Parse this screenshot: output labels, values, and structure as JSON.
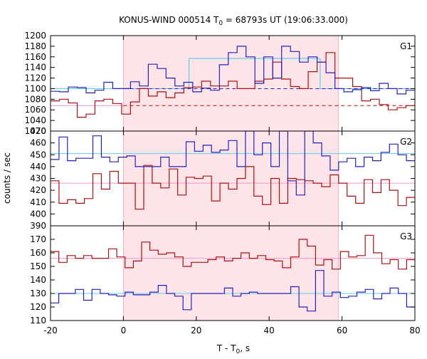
{
  "chart_data": {
    "type": "line",
    "title_main": "KONUS-WIND 000514 T",
    "title_sub": "0",
    "title_rest": " = 68793s UT (19:06:33.000)",
    "xlabel_main": "T - T",
    "xlabel_sub": "0",
    "xlabel_rest": ", s",
    "ylabel": "counts / sec",
    "xlim": [
      -20,
      80
    ],
    "xticks": [
      "-20",
      "0",
      "20",
      "40",
      "60",
      "80"
    ],
    "highlight_interval": [
      0,
      59
    ],
    "colors": {
      "blue": "#2222bb",
      "red": "#aa1111",
      "cyan": "#66ccee",
      "pink": "#ee99cc",
      "band": "#fde4e8"
    },
    "panels": [
      {
        "label": "G1",
        "ylim": [
          1020,
          1200
        ],
        "yticks": [
          "1020",
          "1040",
          "1060",
          "1080",
          "1100",
          "1120",
          "1140",
          "1160",
          "1180",
          "1200"
        ],
        "blue_series": [
          1095,
          1094,
          1103,
          1102,
          1092,
          1097,
          1112,
          1100,
          1100,
          1113,
          1105,
          1146,
          1138,
          1120,
          1105,
          1112,
          1094,
          1101,
          1097,
          1145,
          1168,
          1180,
          1160,
          1110,
          1160,
          1120,
          1180,
          1170,
          1150,
          1160,
          1150,
          1130,
          1100,
          1094,
          1098,
          1102,
          1096,
          1110,
          1100,
          1090,
          1097
        ],
        "red_series": [
          1077,
          1080,
          1073,
          1046,
          1052,
          1077,
          1080,
          1072,
          1052,
          1075,
          1100,
          1086,
          1094,
          1083,
          1092,
          1102,
          1103,
          1114,
          1105,
          1105,
          1114,
          1100,
          1100,
          1114,
          1118,
          1150,
          1118,
          1104,
          1100,
          1132,
          1150,
          1168,
          1120,
          1120,
          1104,
          1077,
          1080,
          1070,
          1060,
          1064,
          1068
        ],
        "cyan_segments": [
          [
            -20,
            18,
            1100
          ],
          [
            18,
            54,
            1157
          ],
          [
            54,
            60,
            1100
          ],
          [
            60,
            80,
            1100
          ]
        ],
        "blue_dashed": [
          [
            0,
            80,
            1100
          ]
        ],
        "red_dashed": [
          [
            0,
            80,
            1068
          ]
        ],
        "pink_line": 1068
      },
      {
        "label": "G2",
        "ylim": [
          390,
          470
        ],
        "yticks": [
          "390",
          "400",
          "410",
          "420",
          "430",
          "440",
          "450",
          "460",
          "470"
        ],
        "blue_series": [
          446,
          465,
          445,
          447,
          447,
          466,
          448,
          444,
          448,
          449,
          440,
          440,
          440,
          448,
          440,
          440,
          461,
          453,
          458,
          452,
          454,
          462,
          440,
          470,
          450,
          460,
          440,
          470,
          428,
          416,
          470,
          460,
          449,
          437,
          444,
          447,
          440,
          448,
          445,
          452,
          459,
          450,
          445
        ],
        "red_series": [
          428,
          409,
          412,
          409,
          413,
          434,
          421,
          436,
          426,
          426,
          404,
          441,
          426,
          422,
          438,
          416,
          431,
          430,
          432,
          411,
          426,
          421,
          430,
          440,
          415,
          408,
          430,
          409,
          430,
          429,
          428,
          426,
          423,
          433,
          426,
          415,
          409,
          429,
          418,
          429,
          420,
          407,
          414
        ],
        "cyan_line": 451,
        "pink_line": 426
      },
      {
        "label": "G3",
        "ylim": [
          110,
          180
        ],
        "yticks": [
          "110",
          "120",
          "130",
          "140",
          "150",
          "160",
          "170"
        ],
        "blue_series": [
          123,
          130,
          130,
          133,
          125,
          133,
          130,
          129,
          128,
          131,
          129,
          129,
          131,
          136,
          130,
          128,
          118,
          130,
          130,
          130,
          130,
          134,
          128,
          130,
          131,
          130,
          130,
          130,
          130,
          135,
          120,
          117,
          147,
          128,
          131,
          127,
          128,
          131,
          133,
          126,
          130,
          134,
          130,
          120
        ],
        "red_series": [
          161,
          153,
          158,
          156,
          158,
          156,
          156,
          163,
          157,
          149,
          154,
          168,
          162,
          159,
          160,
          157,
          150,
          153,
          153,
          155,
          157,
          154,
          156,
          160,
          156,
          158,
          155,
          154,
          149,
          157,
          170,
          165,
          151,
          155,
          148,
          161,
          157,
          158,
          173,
          160,
          152,
          155,
          148,
          155
        ],
        "cyan_line": 130,
        "pink_line": 156
      }
    ]
  }
}
